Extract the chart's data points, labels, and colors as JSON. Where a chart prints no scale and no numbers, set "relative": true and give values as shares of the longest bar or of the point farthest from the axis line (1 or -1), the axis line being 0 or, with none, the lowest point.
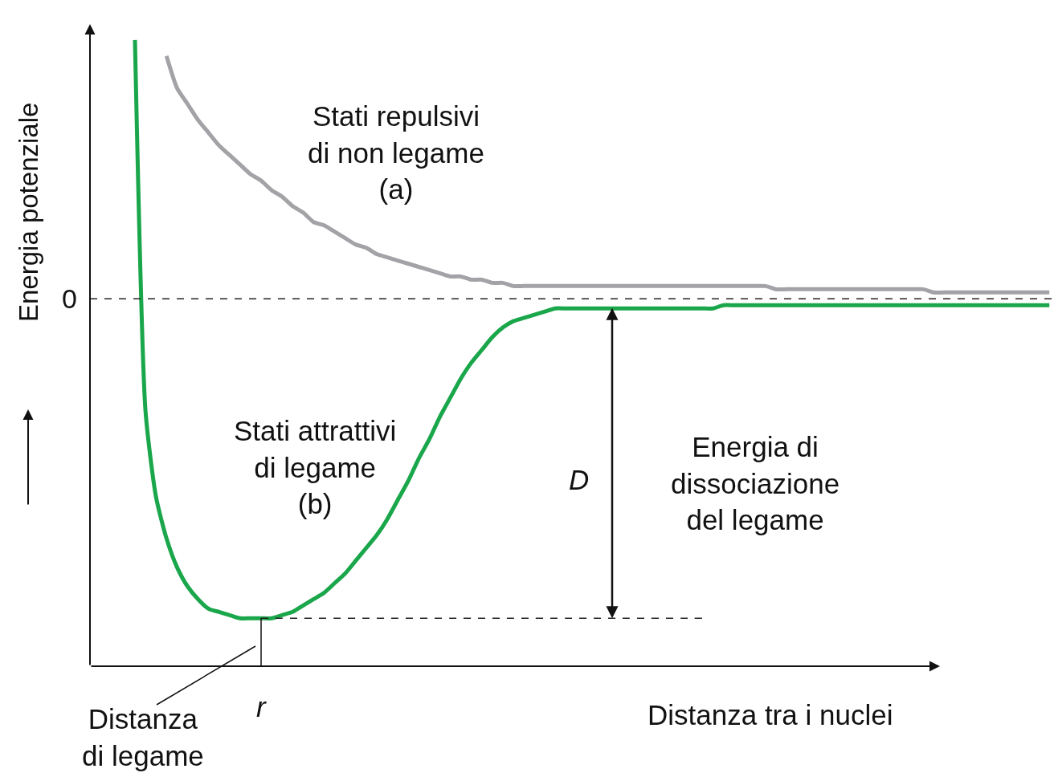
{
  "chart_data": {
    "type": "line",
    "relative": true,
    "xlabel": "Distanza tra i nuclei",
    "ylabel": "Energia potenziale",
    "categories": [
      null,
      null,
      null,
      null,
      null,
      null,
      null,
      null,
      null,
      null,
      null,
      null,
      null,
      null,
      null,
      null,
      null,
      null,
      null,
      null,
      null,
      null,
      null,
      null,
      null,
      null,
      null,
      null,
      null,
      null,
      null,
      null,
      null,
      null,
      null,
      null,
      null,
      null,
      null,
      null,
      null,
      null,
      null,
      null,
      null,
      null,
      null,
      null,
      null,
      null,
      null,
      null,
      null,
      null,
      null,
      null,
      null,
      null,
      null,
      null,
      null,
      null,
      null,
      null,
      null,
      null,
      null,
      null,
      null,
      null,
      null,
      null,
      null,
      null,
      null,
      null,
      null,
      null,
      null,
      null,
      null,
      null,
      null,
      null,
      null,
      null,
      null,
      null
    ],
    "series": [
      {
        "color": "#a3a3a7",
        "values": [
          null,
          null,
          null,
          0.76,
          0.66,
          0.61,
          0.56,
          0.52,
          0.48,
          0.45,
          0.42,
          0.39,
          0.37,
          0.34,
          0.32,
          0.29,
          0.27,
          0.24,
          0.23,
          0.21,
          0.19,
          0.17,
          0.16,
          0.14,
          0.13,
          0.12,
          0.11,
          0.1,
          0.09,
          0.08,
          0.07,
          0.07,
          0.06,
          0.06,
          0.05,
          0.05,
          0.04,
          0.04,
          0.04,
          0.04,
          0.04,
          0.04,
          0.04,
          0.04,
          0.04,
          0.04,
          0.04,
          0.04,
          0.04,
          0.04,
          0.04,
          0.04,
          0.04,
          0.04,
          0.04,
          0.04,
          0.04,
          0.04,
          0.04,
          0.04,
          0.04,
          0.03,
          0.03,
          0.03,
          0.03,
          0.03,
          0.03,
          0.03,
          0.03,
          0.03,
          0.03,
          0.03,
          0.03,
          0.03,
          0.03,
          0.03,
          0.02,
          0.02,
          0.02,
          0.02,
          0.02,
          0.02,
          0.02,
          0.02,
          0.02,
          0.02,
          0.02,
          0.02
        ]
      },
      {
        "color": "#1aa64a",
        "values": [
          0.81,
          -0.35,
          -0.62,
          -0.75,
          -0.84,
          -0.9,
          -0.94,
          -0.97,
          -0.98,
          -0.99,
          -1,
          -1,
          -1,
          -1,
          -0.99,
          -0.98,
          -0.96,
          -0.94,
          -0.92,
          -0.89,
          -0.86,
          -0.82,
          -0.78,
          -0.74,
          -0.69,
          -0.63,
          -0.57,
          -0.5,
          -0.44,
          -0.37,
          -0.31,
          -0.25,
          -0.2,
          -0.16,
          -0.12,
          -0.09,
          -0.07,
          -0.06,
          -0.05,
          -0.04,
          -0.03,
          -0.03,
          -0.03,
          -0.03,
          -0.03,
          -0.03,
          -0.03,
          -0.03,
          -0.03,
          -0.03,
          -0.03,
          -0.03,
          -0.03,
          -0.03,
          -0.03,
          -0.03,
          -0.02,
          -0.02,
          -0.02,
          -0.02,
          -0.02,
          -0.02,
          -0.02,
          -0.02,
          -0.02,
          -0.02,
          -0.02,
          -0.02,
          -0.02,
          -0.02,
          -0.02,
          -0.02,
          -0.02,
          -0.02,
          -0.02,
          -0.02,
          -0.02,
          -0.02,
          -0.02,
          -0.02,
          -0.02,
          -0.02,
          -0.02,
          -0.02,
          -0.02,
          -0.02,
          -0.02,
          -0.02
        ]
      },
      {
        "color": "#222222",
        "line_style": "dashed",
        "values": [
          null,
          null,
          null,
          null,
          null,
          null,
          null,
          null,
          null,
          null,
          null,
          null,
          -1,
          -1,
          -1,
          -1,
          -1,
          -1,
          -1,
          -1,
          -1,
          -1,
          -1,
          -1,
          -1,
          -1,
          -1,
          -1,
          -1,
          -1,
          -1,
          -1,
          -1,
          -1,
          -1,
          -1,
          -1,
          -1,
          -1,
          -1,
          -1,
          -1,
          -1,
          -1,
          -1,
          -1,
          -1,
          -1,
          -1,
          -1,
          -1,
          -1,
          -1,
          -1,
          -1,
          null,
          null,
          null,
          null,
          null,
          null,
          null,
          null,
          null,
          null,
          null,
          null,
          null,
          null,
          null,
          null,
          null,
          null,
          null,
          null,
          null,
          null,
          null,
          null,
          null,
          null,
          null,
          null,
          null,
          null,
          null,
          null,
          null
        ]
      }
    ],
    "ref_lines": [
      {
        "axis": "y",
        "value": 0,
        "label": "0",
        "color": "#222222",
        "line_style": "dashed"
      }
    ],
    "annotations": [
      "Stati repulsivi\ndi non legame\n(a)",
      "Stati attrattivi\ndi legame\n(b)",
      "D",
      "Energia di\ndissociazione\ndel legame",
      "Distanza\ndi legame",
      "r"
    ]
  }
}
